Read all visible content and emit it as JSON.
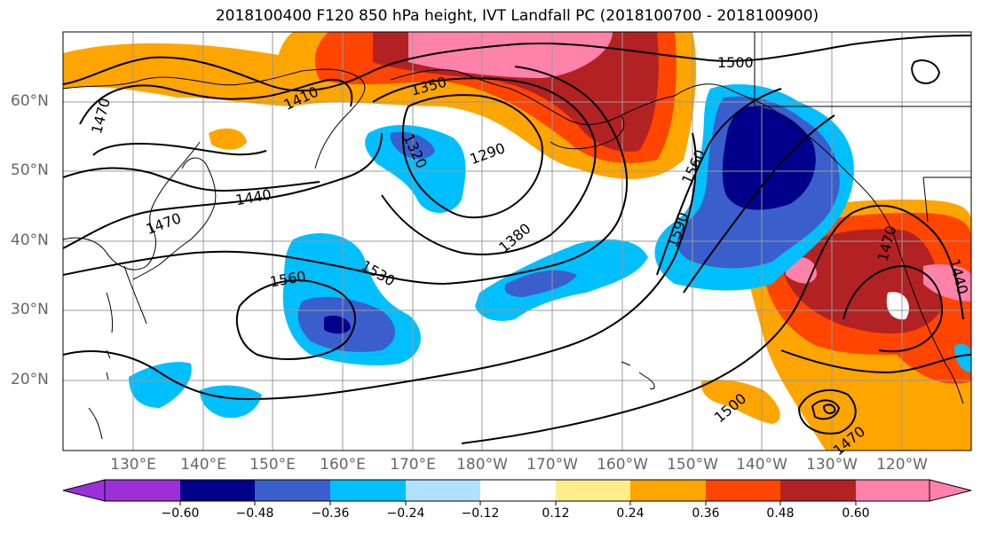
{
  "title": "2018100400 F120 850 hPa height, IVT Landfall PC (2018100700 - 2018100900)",
  "lat_labels": [
    "60°N",
    "50°N",
    "40°N",
    "30°N",
    "20°N"
  ],
  "lon_labels": [
    "130°E",
    "140°E",
    "150°E",
    "160°E",
    "170°E",
    "180°W",
    "170°W",
    "160°W",
    "150°W",
    "140°W",
    "130°W",
    "120°W"
  ],
  "contour_labels": [
    "1470",
    "1410",
    "1350",
    "1320",
    "1290",
    "1500",
    "1560",
    "1440",
    "1470",
    "1380",
    "1590",
    "1560",
    "1530",
    "1470",
    "1440",
    "1500",
    "1470"
  ],
  "colorbar": {
    "tick_labels": [
      "−0.60",
      "−0.48",
      "−0.36",
      "−0.24",
      "−0.12",
      "0.12",
      "0.24",
      "0.36",
      "0.48",
      "0.60"
    ],
    "colors": [
      "#9b30d9",
      "#00008b",
      "#3a5fcd",
      "#00bfff",
      "#b0e2ff",
      "#ffffff",
      "#ffec8b",
      "#ffa500",
      "#ff4500",
      "#b22222",
      "#ff82ab"
    ]
  }
}
